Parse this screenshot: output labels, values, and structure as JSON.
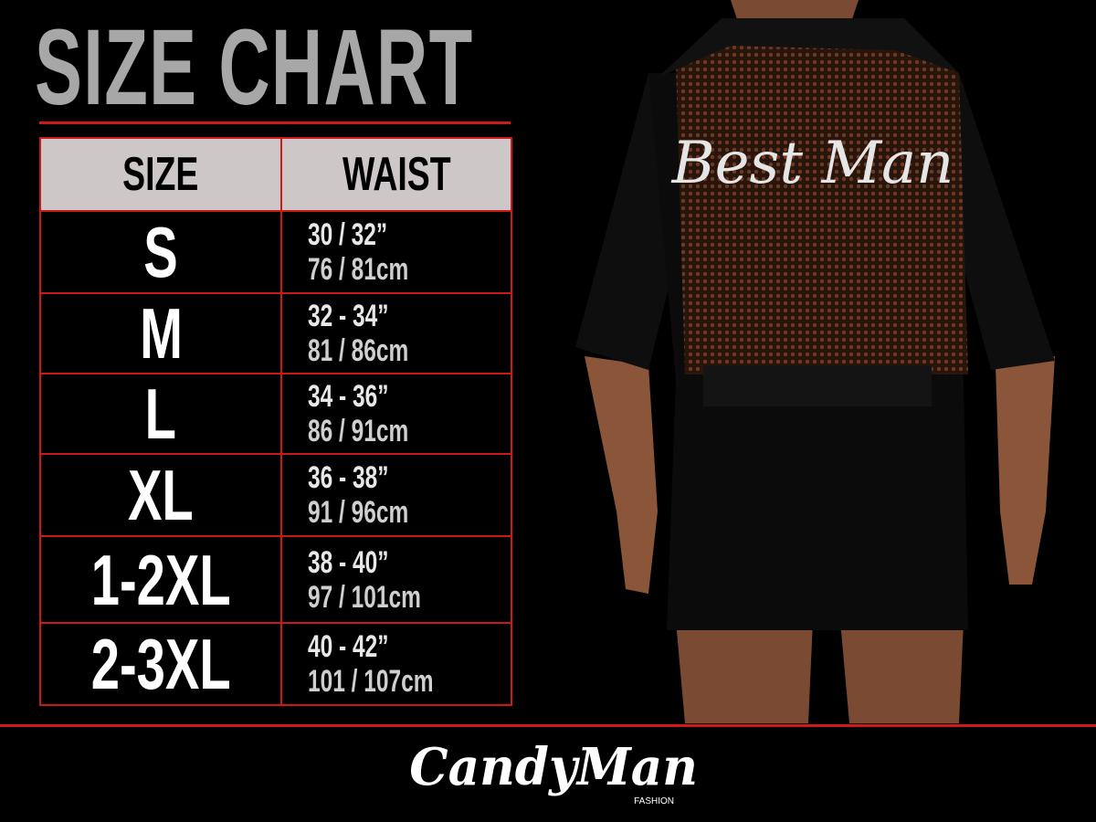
{
  "title": "SIZE CHART",
  "table": {
    "headers": [
      "SIZE",
      "WAIST"
    ],
    "rows": [
      {
        "size": "S",
        "inches": "30 / 32”",
        "cm": "76 / 81cm"
      },
      {
        "size": "M",
        "inches": "32 - 34”",
        "cm": "81 / 86cm"
      },
      {
        "size": "L",
        "inches": "34 - 36”",
        "cm": "86 / 91cm"
      },
      {
        "size": "XL",
        "inches": "36 - 38”",
        "cm": "91 / 96cm"
      },
      {
        "size": "1-2XL",
        "inches": "38 - 40”",
        "cm": "97 / 101cm"
      },
      {
        "size": "2-3XL",
        "inches": "40 - 42”",
        "cm": "101 / 107cm"
      }
    ]
  },
  "product": {
    "back_print": "Best Man"
  },
  "logo": {
    "brand": "CandyMan",
    "sub": "FASHION"
  },
  "colors": {
    "accent": "#d01818",
    "background": "#000000",
    "header": "#cdc7c7",
    "title": "#a7a7a7"
  }
}
